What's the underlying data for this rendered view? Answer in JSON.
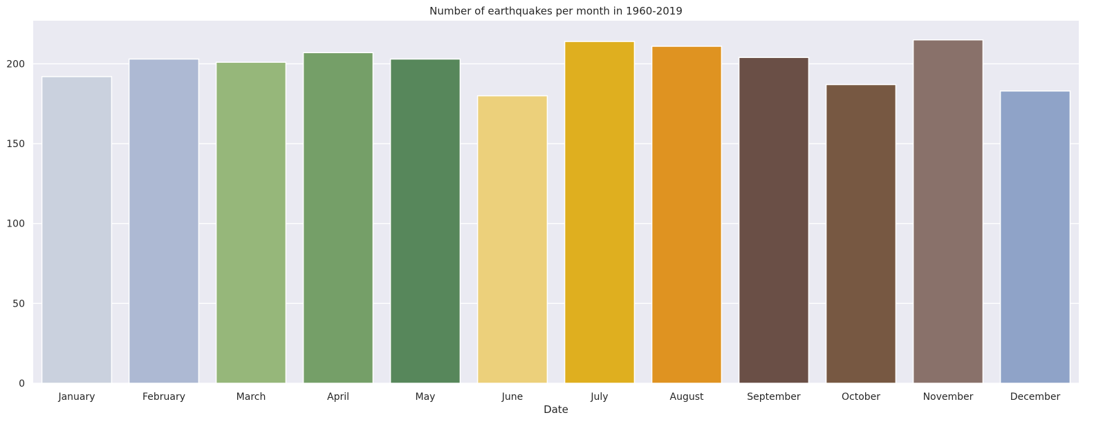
{
  "chart_data": {
    "type": "bar",
    "title": "Number of earthquakes per month in 1960-2019",
    "xlabel": "Date",
    "ylabel": "",
    "ylim": [
      0,
      227
    ],
    "yticks": [
      0,
      50,
      100,
      150,
      200
    ],
    "grid": true,
    "categories": [
      "January",
      "February",
      "March",
      "April",
      "May",
      "June",
      "July",
      "August",
      "September",
      "October",
      "November",
      "December"
    ],
    "values": [
      192,
      203,
      201,
      207,
      203,
      180,
      214,
      211,
      204,
      187,
      215,
      183
    ],
    "colors": [
      "#cad1de",
      "#adb9d3",
      "#96b77a",
      "#759f68",
      "#57875b",
      "#ecd07b",
      "#dfaf1f",
      "#df9321",
      "#6a4f46",
      "#775842",
      "#89716a",
      "#8fa3c8"
    ],
    "plot_background": "#eaeaf2"
  }
}
